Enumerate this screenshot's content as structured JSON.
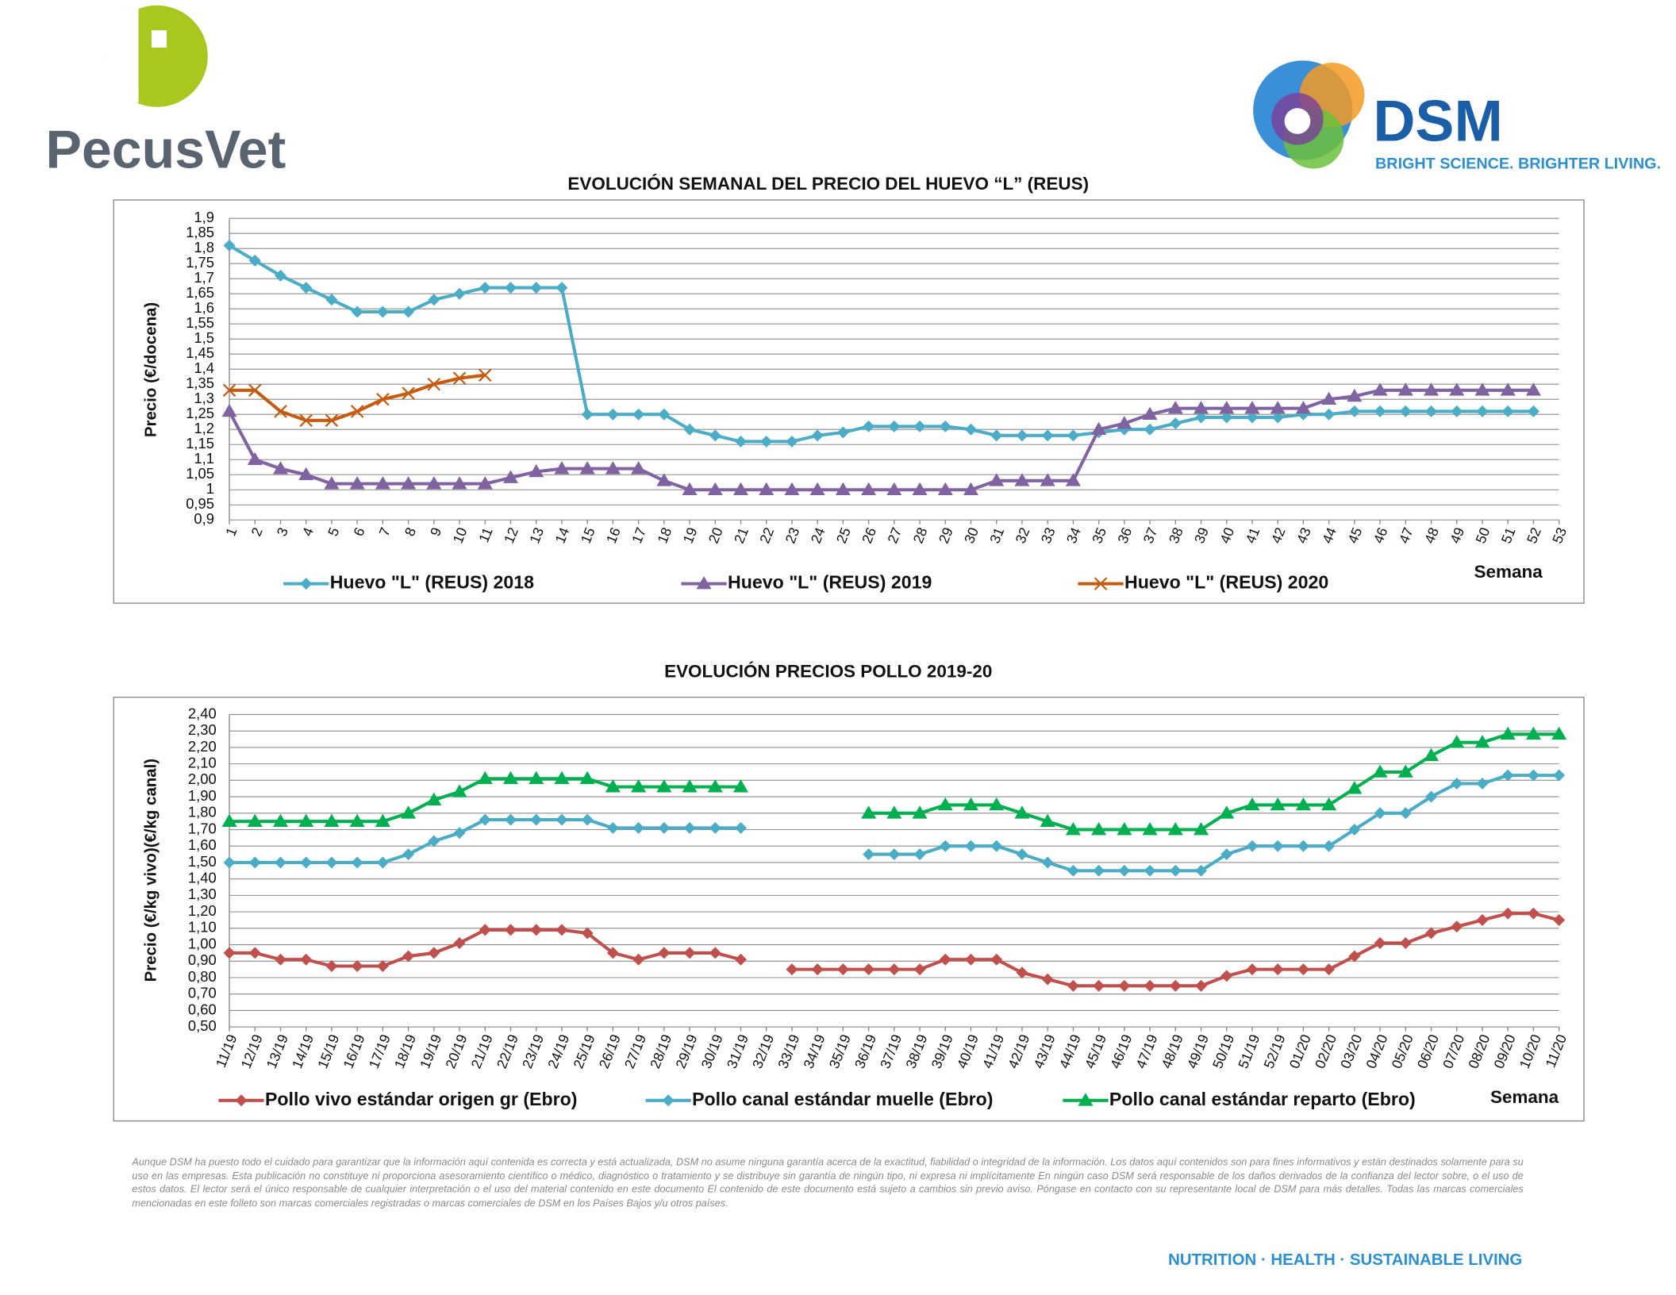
{
  "header": {
    "left_logo": "PecusVet",
    "right_logo": "DSM",
    "tagline": "BRIGHT SCIENCE. BRIGHTER LIVING."
  },
  "chart_data": [
    {
      "type": "line",
      "title": "EVOLUCIÓN SEMANAL DEL PRECIO DEL HUEVO “L” (REUS)",
      "y_label": "Precio (€/docena)",
      "x_label": "Semana",
      "grid": true,
      "legend": "bottom",
      "x": [
        1,
        2,
        3,
        4,
        5,
        6,
        7,
        8,
        9,
        10,
        11,
        12,
        13,
        14,
        15,
        16,
        17,
        18,
        19,
        20,
        21,
        22,
        23,
        24,
        25,
        26,
        27,
        28,
        29,
        30,
        31,
        32,
        33,
        34,
        35,
        36,
        37,
        38,
        39,
        40,
        41,
        42,
        43,
        44,
        45,
        46,
        47,
        48,
        49,
        50,
        51,
        52,
        53
      ],
      "xlim": [
        1,
        53
      ],
      "ylim": [
        0.9,
        1.9
      ],
      "yticks": [
        {
          "value": 0.9,
          "label": "0,9"
        },
        {
          "value": 0.95,
          "label": "0,95"
        },
        1,
        {
          "value": 1.05,
          "label": "1,05"
        },
        {
          "value": 1.1,
          "label": "1,1"
        },
        {
          "value": 1.15,
          "label": "1,15"
        },
        {
          "value": 1.2,
          "label": "1,2"
        },
        {
          "value": 1.25,
          "label": "1,25"
        },
        {
          "value": 1.3,
          "label": "1,3"
        },
        {
          "value": 1.35,
          "label": "1,35"
        },
        {
          "value": 1.4,
          "label": "1,4"
        },
        {
          "value": 1.45,
          "label": "1,45"
        },
        {
          "value": 1.5,
          "label": "1,5"
        },
        {
          "value": 1.55,
          "label": "1,55"
        },
        {
          "value": 1.6,
          "label": "1,6"
        },
        {
          "value": 1.65,
          "label": "1,65"
        },
        {
          "value": 1.7,
          "label": "1,7"
        },
        {
          "value": 1.75,
          "label": "1,75"
        },
        {
          "value": 1.8,
          "label": "1,8"
        },
        {
          "value": 1.85,
          "label": "1,85"
        },
        {
          "value": 1.9,
          "label": "1,9"
        }
      ],
      "series": [
        {
          "name": "Huevo \"L\" (REUS) 2018",
          "color": "#4bacc6",
          "marker": "diamond",
          "values": [
            1.81,
            1.76,
            1.71,
            1.67,
            1.63,
            1.59,
            1.59,
            1.59,
            1.63,
            1.65,
            1.67,
            1.67,
            1.67,
            1.67,
            1.25,
            1.25,
            1.25,
            1.25,
            1.2,
            1.18,
            1.16,
            1.16,
            1.16,
            1.18,
            1.19,
            1.21,
            1.21,
            1.21,
            1.21,
            1.2,
            1.18,
            1.18,
            1.18,
            1.18,
            1.19,
            1.2,
            1.2,
            1.22,
            1.24,
            1.24,
            1.24,
            1.24,
            1.25,
            1.25,
            1.26,
            1.26,
            1.26,
            1.26,
            1.26,
            1.26,
            1.26,
            1.26,
            null
          ]
        },
        {
          "name": "Huevo \"L\" (REUS) 2019",
          "color": "#8064a2",
          "marker": "triangle",
          "values": [
            1.26,
            1.1,
            1.07,
            1.05,
            1.02,
            1.02,
            1.02,
            1.02,
            1.02,
            1.02,
            1.02,
            1.04,
            1.06,
            1.07,
            1.07,
            1.07,
            1.07,
            1.03,
            1.0,
            1.0,
            1.0,
            1.0,
            1.0,
            1.0,
            1.0,
            1.0,
            1.0,
            1.0,
            1.0,
            1.0,
            1.03,
            1.03,
            1.03,
            1.03,
            1.2,
            1.22,
            1.25,
            1.27,
            1.27,
            1.27,
            1.27,
            1.27,
            1.27,
            1.3,
            1.31,
            1.33,
            1.33,
            1.33,
            1.33,
            1.33,
            1.33,
            1.33,
            null
          ]
        },
        {
          "name": "Huevo \"L\" (REUS) 2020",
          "color": "#c55a11",
          "marker": "x",
          "values": [
            1.33,
            1.33,
            1.26,
            1.23,
            1.23,
            1.26,
            1.3,
            1.32,
            1.35,
            1.37,
            1.38,
            null,
            null,
            null,
            null,
            null,
            null,
            null,
            null,
            null,
            null,
            null,
            null,
            null,
            null,
            null,
            null,
            null,
            null,
            null,
            null,
            null,
            null,
            null,
            null,
            null,
            null,
            null,
            null,
            null,
            null,
            null,
            null,
            null,
            null,
            null,
            null,
            null,
            null,
            null,
            null,
            null,
            null
          ]
        }
      ]
    },
    {
      "type": "line",
      "title": "EVOLUCIÓN PRECIOS POLLO 2019-20",
      "y_label": "Precio (€/kg vivo)(€/kg canal)",
      "x_label": "Semana",
      "grid": true,
      "legend": "bottom",
      "categories": [
        "11/19",
        "12/19",
        "13/19",
        "14/19",
        "15/19",
        "16/19",
        "17/19",
        "18/19",
        "19/19",
        "20/19",
        "21/19",
        "22/19",
        "23/19",
        "24/19",
        "25/19",
        "26/19",
        "27/19",
        "28/19",
        "29/19",
        "30/19",
        "31/19",
        "32/19",
        "33/19",
        "34/19",
        "35/19",
        "36/19",
        "37/19",
        "38/19",
        "39/19",
        "40/19",
        "41/19",
        "42/19",
        "43/19",
        "44/19",
        "45/19",
        "46/19",
        "47/19",
        "48/19",
        "49/19",
        "50/19",
        "51/19",
        "52/19",
        "01/20",
        "02/20",
        "03/20",
        "04/20",
        "05/20",
        "06/20",
        "07/20",
        "08/20",
        "09/20",
        "10/20",
        "11/20"
      ],
      "ylim": [
        0.5,
        2.4
      ],
      "yticks": [
        {
          "value": 0.5,
          "label": "0,50"
        },
        {
          "value": 0.6,
          "label": "0,60"
        },
        {
          "value": 0.7,
          "label": "0,70"
        },
        {
          "value": 0.8,
          "label": "0,80"
        },
        {
          "value": 0.9,
          "label": "0,90"
        },
        {
          "value": 1.0,
          "label": "1,00"
        },
        {
          "value": 1.1,
          "label": "1,10"
        },
        {
          "value": 1.2,
          "label": "1,20"
        },
        {
          "value": 1.3,
          "label": "1,30"
        },
        {
          "value": 1.4,
          "label": "1,40"
        },
        {
          "value": 1.5,
          "label": "1,50"
        },
        {
          "value": 1.6,
          "label": "1,60"
        },
        {
          "value": 1.7,
          "label": "1,70"
        },
        {
          "value": 1.8,
          "label": "1,80"
        },
        {
          "value": 1.9,
          "label": "1,90"
        },
        {
          "value": 2.0,
          "label": "2,00"
        },
        {
          "value": 2.1,
          "label": "2,10"
        },
        {
          "value": 2.2,
          "label": "2,20"
        },
        {
          "value": 2.3,
          "label": "2,30"
        },
        {
          "value": 2.4,
          "label": "2,40"
        }
      ],
      "series": [
        {
          "name": "Pollo vivo estándar origen gr (Ebro)",
          "color": "#c0504d",
          "marker": "diamond",
          "values": [
            0.95,
            0.95,
            0.91,
            0.91,
            0.87,
            0.87,
            0.87,
            0.93,
            0.95,
            1.01,
            1.09,
            1.09,
            1.09,
            1.09,
            1.07,
            0.95,
            0.91,
            0.95,
            0.95,
            0.95,
            0.91,
            null,
            0.85,
            0.85,
            0.85,
            0.85,
            0.85,
            0.85,
            0.91,
            0.91,
            0.91,
            0.83,
            0.79,
            0.75,
            0.75,
            0.75,
            0.75,
            0.75,
            0.75,
            0.81,
            0.85,
            0.85,
            0.85,
            0.85,
            0.93,
            1.01,
            1.01,
            1.07,
            1.11,
            1.15,
            1.19,
            1.19,
            1.15
          ]
        },
        {
          "name": "Pollo canal estándar muelle (Ebro)",
          "color": "#4bacc6",
          "marker": "diamond",
          "values": [
            1.5,
            1.5,
            1.5,
            1.5,
            1.5,
            1.5,
            1.5,
            1.55,
            1.63,
            1.68,
            1.76,
            1.76,
            1.76,
            1.76,
            1.76,
            1.71,
            1.71,
            1.71,
            1.71,
            1.71,
            1.71,
            null,
            null,
            null,
            null,
            1.55,
            1.55,
            1.55,
            1.6,
            1.6,
            1.6,
            1.55,
            1.5,
            1.45,
            1.45,
            1.45,
            1.45,
            1.45,
            1.45,
            1.55,
            1.6,
            1.6,
            1.6,
            1.6,
            1.7,
            1.8,
            1.8,
            1.9,
            1.98,
            1.98,
            2.03,
            2.03,
            2.03
          ]
        },
        {
          "name": "Pollo canal estándar reparto (Ebro)",
          "color": "#00b050",
          "marker": "triangle",
          "values": [
            1.75,
            1.75,
            1.75,
            1.75,
            1.75,
            1.75,
            1.75,
            1.8,
            1.88,
            1.93,
            2.01,
            2.01,
            2.01,
            2.01,
            2.01,
            1.96,
            1.96,
            1.96,
            1.96,
            1.96,
            1.96,
            null,
            null,
            null,
            null,
            1.8,
            1.8,
            1.8,
            1.85,
            1.85,
            1.85,
            1.8,
            1.75,
            1.7,
            1.7,
            1.7,
            1.7,
            1.7,
            1.7,
            1.8,
            1.85,
            1.85,
            1.85,
            1.85,
            1.95,
            2.05,
            2.05,
            2.15,
            2.23,
            2.23,
            2.28,
            2.28,
            2.28
          ]
        }
      ]
    }
  ],
  "disclaimer": "Aunque DSM ha puesto todo el cuidado para garantizar que la información aquí contenida es correcta y está actualizada, DSM no asume ninguna garantía acerca de la exactitud, fiabilidad o integridad de la información. Los datos aquí contenidos son para fines informativos y están destinados solamente para su uso en las empresas. Esta publicación no constituye ni proporciona asesoramiento científico o médico, diagnóstico o tratamiento y se distribuye sin garantía de ningún tipo, ni expresa ni implícitamente En ningún caso DSM será responsable de los daños derivados de la confianza del lector sobre, o el uso de estos datos. El lector será el único responsable de cualquier interpretación o el uso del material contenido en este documento El contenido de este documento está sujeto a cambios sin previo aviso. Póngase en contacto con su representante local de DSM para más detalles. Todas las marcas comerciales mencionadas en este folleto son marcas comerciales registradas o marcas comerciales de DSM en los Países Bajos y/u otros países.",
  "footer": "NUTRITION · HEALTH · SUSTAINABLE LIVING"
}
